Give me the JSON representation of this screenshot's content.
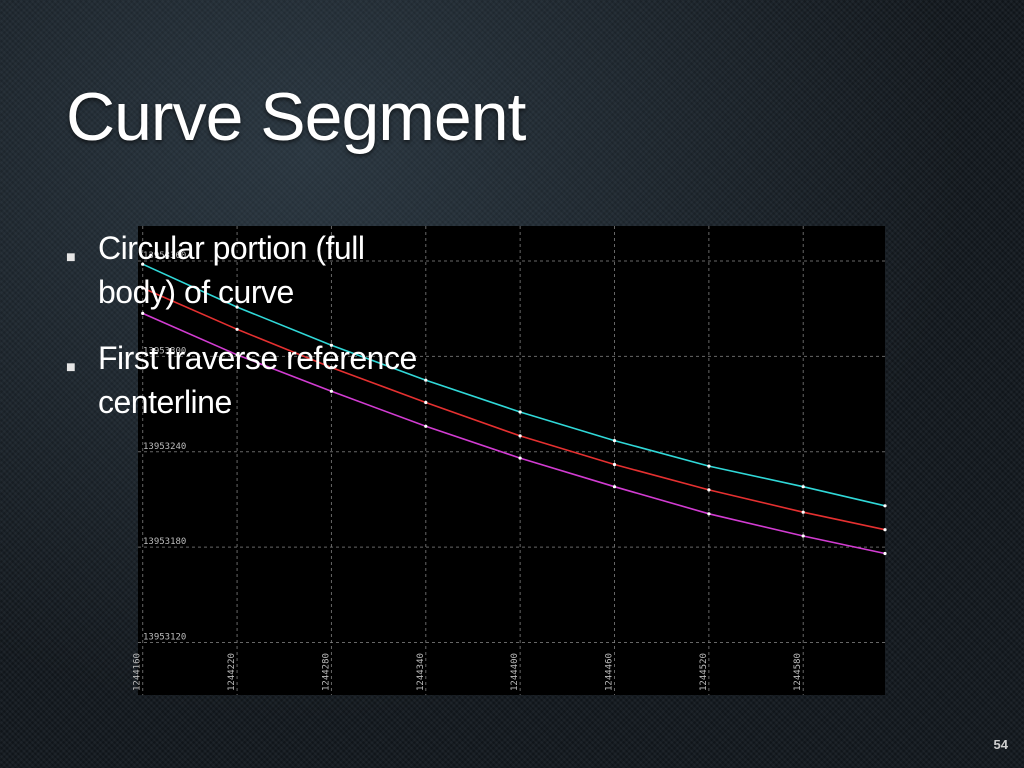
{
  "slide": {
    "title": "Curve Segment",
    "page_number": "54",
    "bullets": [
      {
        "lines": [
          "Circular portion (full",
          "body) of curve"
        ]
      },
      {
        "lines": [
          "First traverse reference",
          "centerline"
        ]
      }
    ],
    "bullet_icon": "square-bullet-icon"
  },
  "chart_data": {
    "type": "line",
    "title": "",
    "xlabel": "",
    "ylabel": "",
    "background": "#000000",
    "grid": true,
    "xlim": [
      1244157,
      1244632
    ],
    "ylim": [
      13953087,
      13953382
    ],
    "x_ticks": [
      1244160,
      1244220,
      1244280,
      1244340,
      1244400,
      1244460,
      1244520,
      1244580
    ],
    "y_ticks": [
      13953120,
      13953180,
      13953240,
      13953300,
      13953360
    ],
    "series": [
      {
        "color": "#ffffff",
        "x": [
          1244160,
          1244220,
          1244280,
          1244340,
          1244400,
          1244460,
          1244520,
          1244580,
          1244632
        ],
        "y": [
          13953358,
          13953331,
          13953307,
          13953285,
          13953265,
          13953247,
          13953231,
          13953218,
          13953206
        ]
      },
      {
        "color": "#e53030",
        "x": [
          1244160,
          1244220,
          1244280,
          1244340,
          1244400,
          1244460,
          1244520,
          1244580,
          1244632
        ],
        "y": [
          13953343,
          13953317,
          13953293,
          13953271,
          13953250,
          13953232,
          13953216,
          13953202,
          13953191
        ]
      },
      {
        "color": "#d23cd2",
        "x": [
          1244160,
          1244220,
          1244280,
          1244340,
          1244400,
          1244460,
          1244520,
          1244580,
          1244632
        ],
        "y": [
          13953327,
          13953301,
          13953278,
          13953256,
          13953236,
          13953218,
          13953201,
          13953187,
          13953176
        ]
      }
    ]
  }
}
